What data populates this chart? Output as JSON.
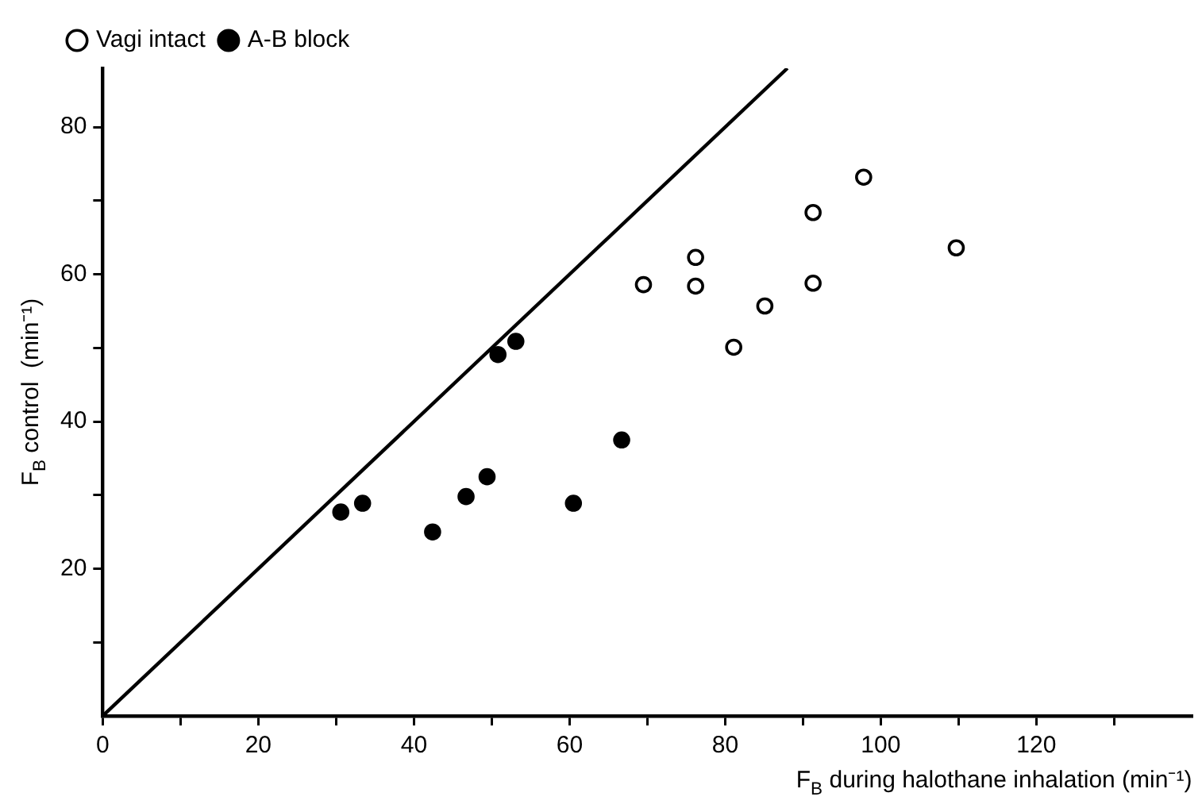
{
  "chart_data": {
    "type": "scatter",
    "xlabel": "F$_{B}$ during halothane inhalation (min⁻¹)",
    "ylabel": "F$_{B}$ control  (min⁻¹)",
    "xlim": [
      0,
      140
    ],
    "ylim": [
      0,
      88
    ],
    "xticks": [
      0,
      {
        "value": 10,
        "label": null
      },
      20,
      {
        "value": 30,
        "label": null
      },
      40,
      {
        "value": 50,
        "label": null
      },
      60,
      {
        "value": 70,
        "label": null
      },
      80,
      {
        "value": 90,
        "label": null
      },
      100,
      {
        "value": 110,
        "label": null
      },
      120,
      {
        "value": 130,
        "label": null
      }
    ],
    "yticks": [
      {
        "value": 10,
        "label": null
      },
      20,
      {
        "value": 30,
        "label": null
      },
      40,
      {
        "value": 50,
        "label": null
      },
      60,
      {
        "value": 70,
        "label": null
      },
      80
    ],
    "grid": false,
    "legend": "top left",
    "series": [
      {
        "name": "Vagi intact",
        "color": "#000000",
        "marker": "circle",
        "x": [
          97.8,
          91.3,
          76.2,
          69.5,
          76.2,
          91.3,
          85.1,
          81.1,
          109.7
        ],
        "values": [
          73.2,
          68.4,
          62.3,
          58.6,
          58.4,
          58.8,
          55.7,
          50.1,
          63.6
        ]
      },
      {
        "name": "A-B block",
        "color": "#000000",
        "marker": "circle",
        "x": [
          53.1,
          50.8,
          30.6,
          33.4,
          42.4,
          46.7,
          49.4,
          60.5,
          66.7
        ],
        "values": [
          50.9,
          49.1,
          27.7,
          28.9,
          25.0,
          29.8,
          32.5,
          28.9,
          37.5
        ]
      },
      {
        "type": "line",
        "color": "#000000",
        "line_style": "solid",
        "marker": "none",
        "x": [
          0,
          88
        ],
        "values": [
          0,
          88
        ]
      }
    ]
  }
}
